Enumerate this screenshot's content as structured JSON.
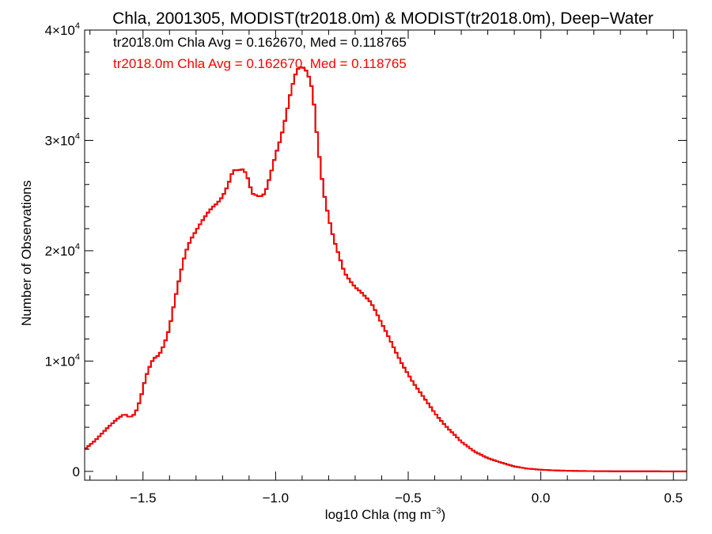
{
  "chart_data": {
    "type": "line",
    "title": "Chla, 2001305, MODIST(tr2018.0m) & MODIST(tr2018.0m), Deep−Water",
    "xlabel": "log10 Chla (mg m",
    "xlabel_sup": "−3",
    "xlabel_end": ")",
    "ylabel": "Number of Observations",
    "xlim": [
      -1.72,
      0.55
    ],
    "ylim": [
      -800,
      40000
    ],
    "x_ticks": [
      -1.5,
      -1.0,
      -0.5,
      0.0,
      0.5
    ],
    "x_tick_labels": [
      "−1.5",
      "−1.0",
      "−0.5",
      "0.0",
      "0.5"
    ],
    "y_ticks": [
      0,
      10000,
      20000,
      30000,
      40000
    ],
    "y_tick_labels": [
      {
        "base": "0",
        "sup": ""
      },
      {
        "base": "1×10",
        "sup": "4"
      },
      {
        "base": "2×10",
        "sup": "4"
      },
      {
        "base": "3×10",
        "sup": "4"
      },
      {
        "base": "4×10",
        "sup": "4"
      }
    ],
    "grid": false,
    "legend_position": "top-left",
    "series": [
      {
        "name": "tr2018.0m Chla Avg = 0.162670, Med = 0.118765",
        "color": "#000000",
        "x": [
          -1.72,
          -1.68,
          -1.64,
          -1.6,
          -1.57,
          -1.55,
          -1.53,
          -1.51,
          -1.49,
          -1.47,
          -1.46,
          -1.45,
          -1.44,
          -1.42,
          -1.4,
          -1.38,
          -1.36,
          -1.34,
          -1.32,
          -1.3,
          -1.28,
          -1.26,
          -1.24,
          -1.22,
          -1.2,
          -1.18,
          -1.16,
          -1.14,
          -1.12,
          -1.1,
          -1.09,
          -1.07,
          -1.06,
          -1.05,
          -1.04,
          -1.02,
          -1.0,
          -0.98,
          -0.96,
          -0.94,
          -0.92,
          -0.9,
          -0.88,
          -0.86,
          -0.85,
          -0.84,
          -0.83,
          -0.82,
          -0.8,
          -0.78,
          -0.76,
          -0.74,
          -0.72,
          -0.7,
          -0.68,
          -0.66,
          -0.64,
          -0.62,
          -0.6,
          -0.58,
          -0.56,
          -0.54,
          -0.52,
          -0.5,
          -0.48,
          -0.45,
          -0.42,
          -0.4,
          -0.38,
          -0.35,
          -0.32,
          -0.3,
          -0.25,
          -0.2,
          -0.15,
          -0.1,
          -0.05,
          0.0,
          0.05,
          0.1,
          0.15,
          0.2,
          0.25,
          0.3,
          0.35,
          0.4,
          0.45,
          0.5,
          0.55
        ],
        "y": [
          2000,
          2800,
          3800,
          4700,
          5200,
          4900,
          5200,
          6500,
          8500,
          9800,
          10200,
          10400,
          10500,
          11500,
          13000,
          15500,
          17800,
          19800,
          21000,
          21800,
          22600,
          23300,
          23900,
          24300,
          24900,
          25900,
          27300,
          27300,
          27400,
          26300,
          25200,
          25000,
          24900,
          25000,
          25200,
          26800,
          28700,
          30200,
          32300,
          34700,
          36400,
          36700,
          36200,
          34500,
          32000,
          29500,
          27500,
          25500,
          23000,
          21000,
          19500,
          18000,
          17300,
          16700,
          16300,
          15800,
          15300,
          14400,
          13400,
          12500,
          11500,
          10500,
          9600,
          8800,
          8000,
          7000,
          6000,
          5300,
          4700,
          3900,
          3200,
          2700,
          1800,
          1200,
          800,
          450,
          250,
          150,
          90,
          55,
          35,
          20,
          12,
          8,
          5,
          3,
          2,
          1,
          0
        ]
      },
      {
        "name": "tr2018.0m Chla Avg = 0.162670, Med = 0.118765",
        "color": "#ff0000",
        "x": [
          -1.72,
          -1.68,
          -1.64,
          -1.6,
          -1.57,
          -1.55,
          -1.53,
          -1.51,
          -1.49,
          -1.47,
          -1.46,
          -1.45,
          -1.44,
          -1.42,
          -1.4,
          -1.38,
          -1.36,
          -1.34,
          -1.32,
          -1.3,
          -1.28,
          -1.26,
          -1.24,
          -1.22,
          -1.2,
          -1.18,
          -1.16,
          -1.14,
          -1.12,
          -1.1,
          -1.09,
          -1.07,
          -1.06,
          -1.05,
          -1.04,
          -1.02,
          -1.0,
          -0.98,
          -0.96,
          -0.94,
          -0.92,
          -0.9,
          -0.88,
          -0.86,
          -0.85,
          -0.84,
          -0.83,
          -0.82,
          -0.8,
          -0.78,
          -0.76,
          -0.74,
          -0.72,
          -0.7,
          -0.68,
          -0.66,
          -0.64,
          -0.62,
          -0.6,
          -0.58,
          -0.56,
          -0.54,
          -0.52,
          -0.5,
          -0.48,
          -0.45,
          -0.42,
          -0.4,
          -0.38,
          -0.35,
          -0.32,
          -0.3,
          -0.25,
          -0.2,
          -0.15,
          -0.1,
          -0.05,
          0.0,
          0.05,
          0.1,
          0.15,
          0.2,
          0.25,
          0.3,
          0.35,
          0.4,
          0.45,
          0.5,
          0.55
        ],
        "y": [
          2000,
          2800,
          3800,
          4700,
          5200,
          4900,
          5200,
          6500,
          8500,
          9800,
          10200,
          10400,
          10500,
          11500,
          13000,
          15500,
          17800,
          19800,
          21000,
          21800,
          22600,
          23300,
          23900,
          24300,
          24900,
          25900,
          27300,
          27300,
          27400,
          26300,
          25200,
          25000,
          24900,
          25000,
          25200,
          26800,
          28700,
          30200,
          32300,
          34700,
          36400,
          36700,
          36200,
          34500,
          32000,
          29500,
          27500,
          25500,
          23000,
          21000,
          19500,
          18000,
          17300,
          16700,
          16300,
          15800,
          15300,
          14400,
          13400,
          12500,
          11500,
          10500,
          9600,
          8800,
          8000,
          7000,
          6000,
          5300,
          4700,
          3900,
          3200,
          2700,
          1800,
          1200,
          800,
          450,
          250,
          150,
          90,
          55,
          35,
          20,
          12,
          8,
          5,
          3,
          2,
          1,
          0
        ]
      }
    ]
  }
}
